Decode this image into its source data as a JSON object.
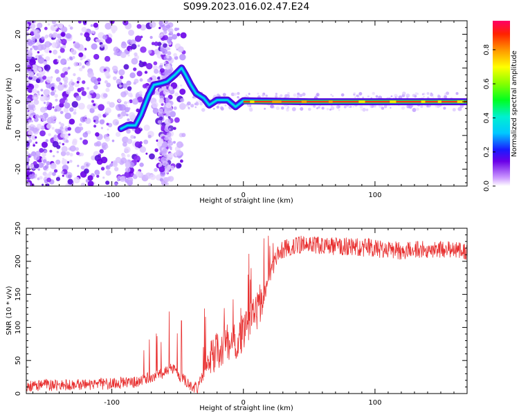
{
  "title": "S099.2023.016.02.47.E24",
  "chart_data": [
    {
      "type": "heatmap",
      "xlabel": "Height of straight line (km)",
      "ylabel": "Frequency (Hz)",
      "xlim": [
        -165,
        170
      ],
      "ylim": [
        -25,
        24
      ],
      "x_ticks": [
        -100,
        0,
        100
      ],
      "y_ticks": [
        -20,
        -10,
        0,
        10,
        20
      ],
      "colorbar": {
        "label": "Normalized spectral amplitude",
        "range": [
          0,
          0.97
        ],
        "ticks": [
          0.0,
          0.2,
          0.4,
          0.6,
          0.8
        ]
      },
      "ridge_trace": [
        {
          "x": -93,
          "y": -8
        },
        {
          "x": -88,
          "y": -7
        },
        {
          "x": -82,
          "y": -7
        },
        {
          "x": -78,
          "y": -4
        },
        {
          "x": -75,
          "y": -1
        },
        {
          "x": -72,
          "y": 2
        },
        {
          "x": -68,
          "y": 5
        },
        {
          "x": -62,
          "y": 5.5
        },
        {
          "x": -58,
          "y": 6
        },
        {
          "x": -52,
          "y": 8
        },
        {
          "x": -47,
          "y": 10
        },
        {
          "x": -44,
          "y": 8
        },
        {
          "x": -40,
          "y": 5
        },
        {
          "x": -36,
          "y": 2.5
        },
        {
          "x": -30,
          "y": 1
        },
        {
          "x": -26,
          "y": -1
        },
        {
          "x": -20,
          "y": 0.5
        },
        {
          "x": -12,
          "y": 0.5
        },
        {
          "x": -6,
          "y": -1.5
        },
        {
          "x": 0,
          "y": 0.3
        },
        {
          "x": 50,
          "y": 0
        },
        {
          "x": 100,
          "y": 0
        },
        {
          "x": 170,
          "y": 0
        }
      ]
    },
    {
      "type": "line",
      "xlabel": "Height of straight line (km)",
      "ylabel": "SNR (10 * v/v)",
      "xlim": [
        -165,
        170
      ],
      "ylim": [
        0,
        250
      ],
      "x_ticks": [
        -100,
        0,
        100
      ],
      "y_ticks": [
        0,
        50,
        100,
        150,
        200,
        250
      ],
      "line_color": "#e83030",
      "series": [
        {
          "x": [
            -165,
            -140,
            -120,
            -100,
            -80,
            -70,
            -60,
            -55,
            -50,
            -45,
            -40,
            -35,
            -30,
            -25,
            -20,
            -15,
            -10,
            -5,
            0,
            5,
            10,
            15,
            20,
            25,
            30,
            40,
            50,
            60,
            80,
            100,
            120,
            140,
            160,
            170
          ],
          "values": [
            12,
            13,
            14,
            15,
            18,
            25,
            32,
            40,
            30,
            20,
            12,
            8,
            30,
            55,
            65,
            72,
            78,
            82,
            90,
            110,
            125,
            145,
            180,
            205,
            218,
            225,
            226,
            224,
            222,
            220,
            216,
            218,
            218,
            215
          ]
        }
      ]
    }
  ]
}
